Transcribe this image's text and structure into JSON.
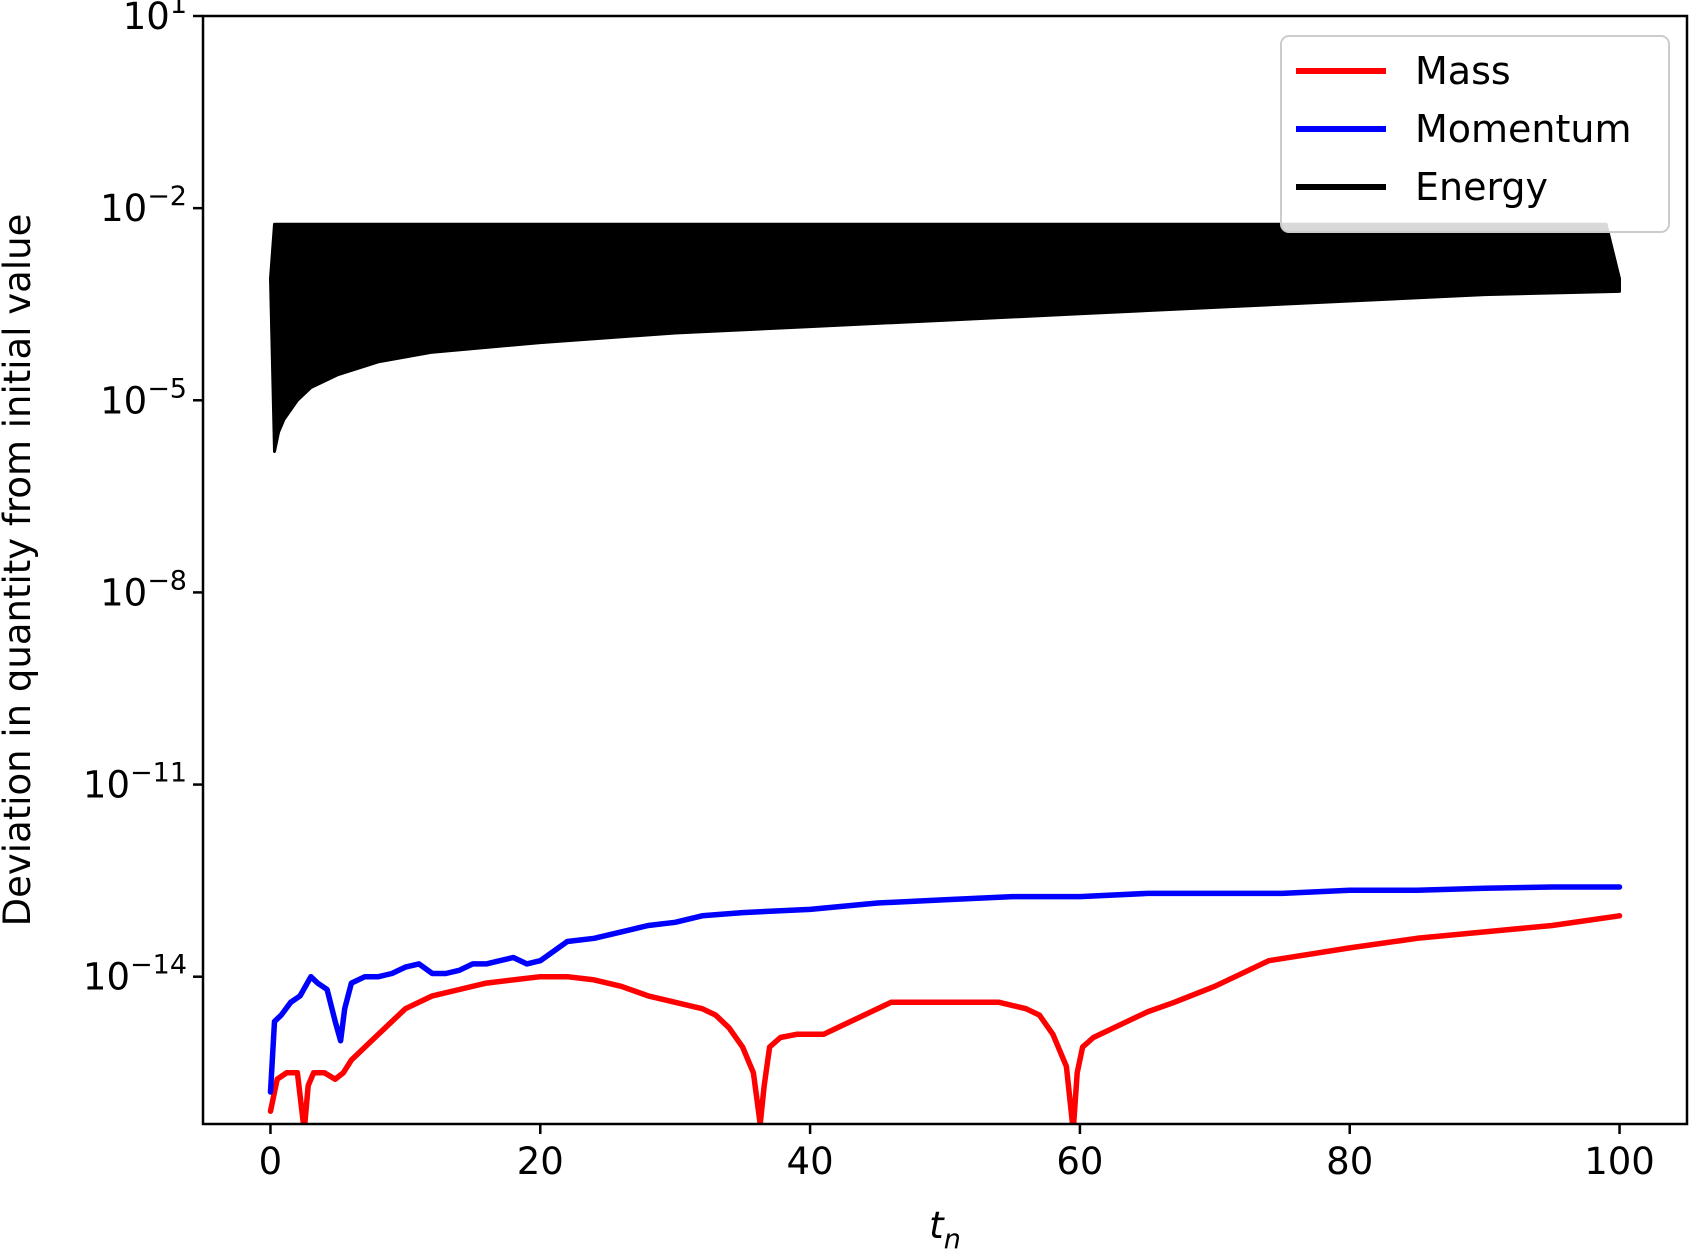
{
  "chart_data": {
    "type": "line",
    "title": "",
    "xlabel": "t",
    "xlabel_sub": "n",
    "ylabel": "Deviation in quantity from initial value",
    "xlim": [
      -5,
      105
    ],
    "ylim_log10": [
      -16.3,
      1
    ],
    "yscale": "log",
    "grid": false,
    "legend_position": "top-right",
    "x_ticks": [
      0,
      20,
      40,
      60,
      80,
      100
    ],
    "y_ticks": [
      {
        "exp": 1,
        "base": "10",
        "sup": "1"
      },
      {
        "exp": -2,
        "base": "10",
        "sup": "−2"
      },
      {
        "exp": -5,
        "base": "10",
        "sup": "−5"
      },
      {
        "exp": -8,
        "base": "10",
        "sup": "−8"
      },
      {
        "exp": -11,
        "base": "10",
        "sup": "−11"
      },
      {
        "exp": -14,
        "base": "10",
        "sup": "−14"
      }
    ],
    "series": [
      {
        "name": "Mass",
        "color": "#ff0000",
        "x": [
          0,
          0.5,
          1.2,
          2.0,
          2.5,
          2.8,
          3.2,
          4.0,
          4.8,
          5.4,
          6,
          8,
          10,
          12,
          14,
          16,
          18,
          20,
          22,
          24,
          26,
          28,
          30,
          32,
          33,
          34,
          35,
          35.8,
          36.3,
          36.6,
          37,
          37.8,
          39,
          41,
          42,
          44,
          46,
          48,
          50,
          52,
          54,
          56,
          57,
          58,
          59,
          59.5,
          59.8,
          60.2,
          61,
          63,
          65,
          67,
          70,
          74,
          80,
          85,
          90,
          95,
          100
        ],
        "log10_y": [
          -16.1,
          -15.6,
          -15.5,
          -15.5,
          -16.4,
          -15.7,
          -15.5,
          -15.5,
          -15.6,
          -15.5,
          -15.3,
          -14.9,
          -14.5,
          -14.3,
          -14.2,
          -14.1,
          -14.05,
          -14.0,
          -14.0,
          -14.05,
          -14.15,
          -14.3,
          -14.4,
          -14.5,
          -14.6,
          -14.8,
          -15.1,
          -15.5,
          -16.3,
          -15.7,
          -15.1,
          -14.95,
          -14.9,
          -14.9,
          -14.8,
          -14.6,
          -14.4,
          -14.4,
          -14.4,
          -14.4,
          -14.4,
          -14.5,
          -14.6,
          -14.9,
          -15.4,
          -16.4,
          -15.5,
          -15.1,
          -14.95,
          -14.75,
          -14.55,
          -14.4,
          -14.15,
          -13.75,
          -13.55,
          -13.4,
          -13.3,
          -13.2,
          -13.05
        ]
      },
      {
        "name": "Momentum",
        "color": "#0000ff",
        "x": [
          0,
          0.3,
          0.8,
          1.5,
          2.2,
          3,
          3.5,
          4.2,
          4.8,
          5.2,
          5.5,
          6,
          7,
          8,
          9,
          10,
          11,
          12,
          13,
          14,
          15,
          16,
          17,
          18,
          19,
          20,
          21,
          22,
          24,
          26,
          28,
          30,
          32,
          35,
          40,
          45,
          50,
          55,
          60,
          65,
          70,
          75,
          80,
          85,
          90,
          95,
          100
        ],
        "log10_y": [
          -15.8,
          -14.7,
          -14.6,
          -14.4,
          -14.3,
          -14.0,
          -14.1,
          -14.2,
          -14.7,
          -15.0,
          -14.5,
          -14.1,
          -14.0,
          -14.0,
          -13.95,
          -13.85,
          -13.8,
          -13.95,
          -13.95,
          -13.9,
          -13.8,
          -13.8,
          -13.75,
          -13.7,
          -13.8,
          -13.75,
          -13.6,
          -13.45,
          -13.4,
          -13.3,
          -13.2,
          -13.15,
          -13.05,
          -13.0,
          -12.95,
          -12.85,
          -12.8,
          -12.75,
          -12.75,
          -12.7,
          -12.7,
          -12.7,
          -12.65,
          -12.65,
          -12.62,
          -12.6,
          -12.6
        ]
      },
      {
        "name": "Energy",
        "color": "#000000",
        "upper_x": [
          0,
          0.3,
          1,
          5,
          20,
          50,
          99,
          100
        ],
        "upper_log10_y": [
          -3.1,
          -2.25,
          -2.25,
          -2.25,
          -2.25,
          -2.25,
          -2.25,
          -3.1
        ],
        "lower_x": [
          0,
          0.3,
          0.6,
          1,
          2,
          3,
          5,
          8,
          12,
          20,
          30,
          40,
          50,
          60,
          70,
          80,
          90,
          100
        ],
        "lower_log10_y": [
          -3.1,
          -5.8,
          -5.5,
          -5.3,
          -5.0,
          -4.8,
          -4.6,
          -4.4,
          -4.25,
          -4.1,
          -3.95,
          -3.85,
          -3.75,
          -3.65,
          -3.55,
          -3.45,
          -3.35,
          -3.3
        ]
      }
    ]
  }
}
